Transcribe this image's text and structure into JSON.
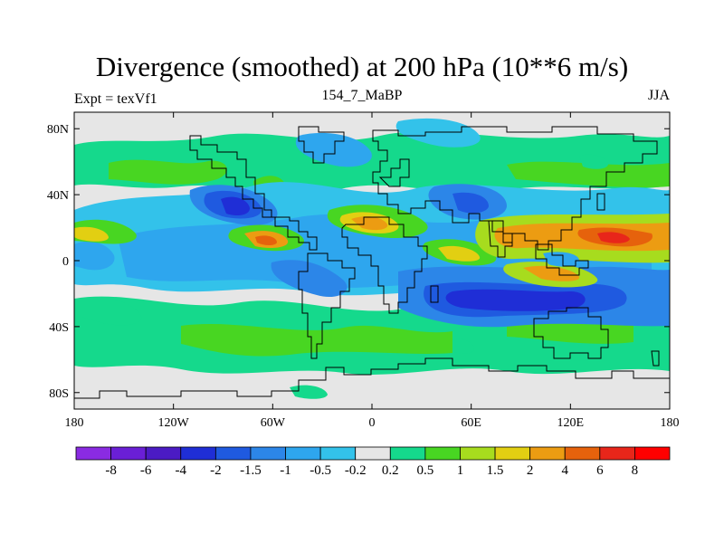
{
  "header": {
    "title": "Divergence (smoothed) at 200 hPa (10**6 m/s)",
    "left_label": "Expt = texVf1",
    "center_label": "154_7_MaBP",
    "right_label": "JJA"
  },
  "chart_data": {
    "type": "heatmap",
    "title": "Divergence (smoothed) at 200 hPa (10**6 m/s)",
    "projection": "lat-lon",
    "x_range": [
      -180,
      180
    ],
    "y_range": [
      -90,
      90
    ],
    "x_ticks": [
      {
        "value": -180,
        "label": "180"
      },
      {
        "value": -120,
        "label": "120W"
      },
      {
        "value": -60,
        "label": "60W"
      },
      {
        "value": 0,
        "label": "0"
      },
      {
        "value": 60,
        "label": "60E"
      },
      {
        "value": 120,
        "label": "120E"
      },
      {
        "value": 180,
        "label": "180"
      }
    ],
    "y_ticks": [
      {
        "value": 80,
        "label": "80N"
      },
      {
        "value": 40,
        "label": "40N"
      },
      {
        "value": 0,
        "label": "0"
      },
      {
        "value": -40,
        "label": "40S"
      },
      {
        "value": -80,
        "label": "80S"
      }
    ],
    "colorbar": {
      "levels": [
        "-8",
        "-6",
        "-4",
        "-2",
        "-1.5",
        "-1",
        "-0.5",
        "-0.2",
        "0.2",
        "0.5",
        "1",
        "1.5",
        "2",
        "4",
        "6",
        "8"
      ],
      "colors": [
        "#8a2be2",
        "#6a1fd6",
        "#4b1bc4",
        "#1f2ed6",
        "#1f5ae0",
        "#2c86e8",
        "#2ea6ee",
        "#33c2ea",
        "#e6e6e6",
        "#15d98c",
        "#48d622",
        "#a7dc1e",
        "#e2cf12",
        "#ec9c12",
        "#e6620c",
        "#e8261a",
        "#ff0000"
      ]
    }
  }
}
